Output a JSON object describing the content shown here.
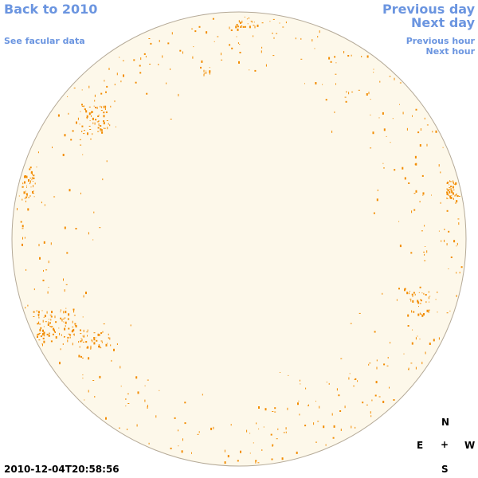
{
  "nav": {
    "back_label": "Back to 2010",
    "facular_label": "See facular data",
    "previous_day_label": "Previous day",
    "next_day_label": "Next day",
    "previous_hour_label": "Previous hour",
    "next_hour_label": "Next hour"
  },
  "timestamp": "2010-12-04T20:58:56",
  "compass": {
    "north": "N",
    "east": "E",
    "center": "+",
    "west": "W",
    "south": "S"
  },
  "colors": {
    "link": "#6b95e0",
    "disk_fill": "#fdf8ea",
    "disk_border": "#b5aa98",
    "facula": "#f28c00"
  }
}
